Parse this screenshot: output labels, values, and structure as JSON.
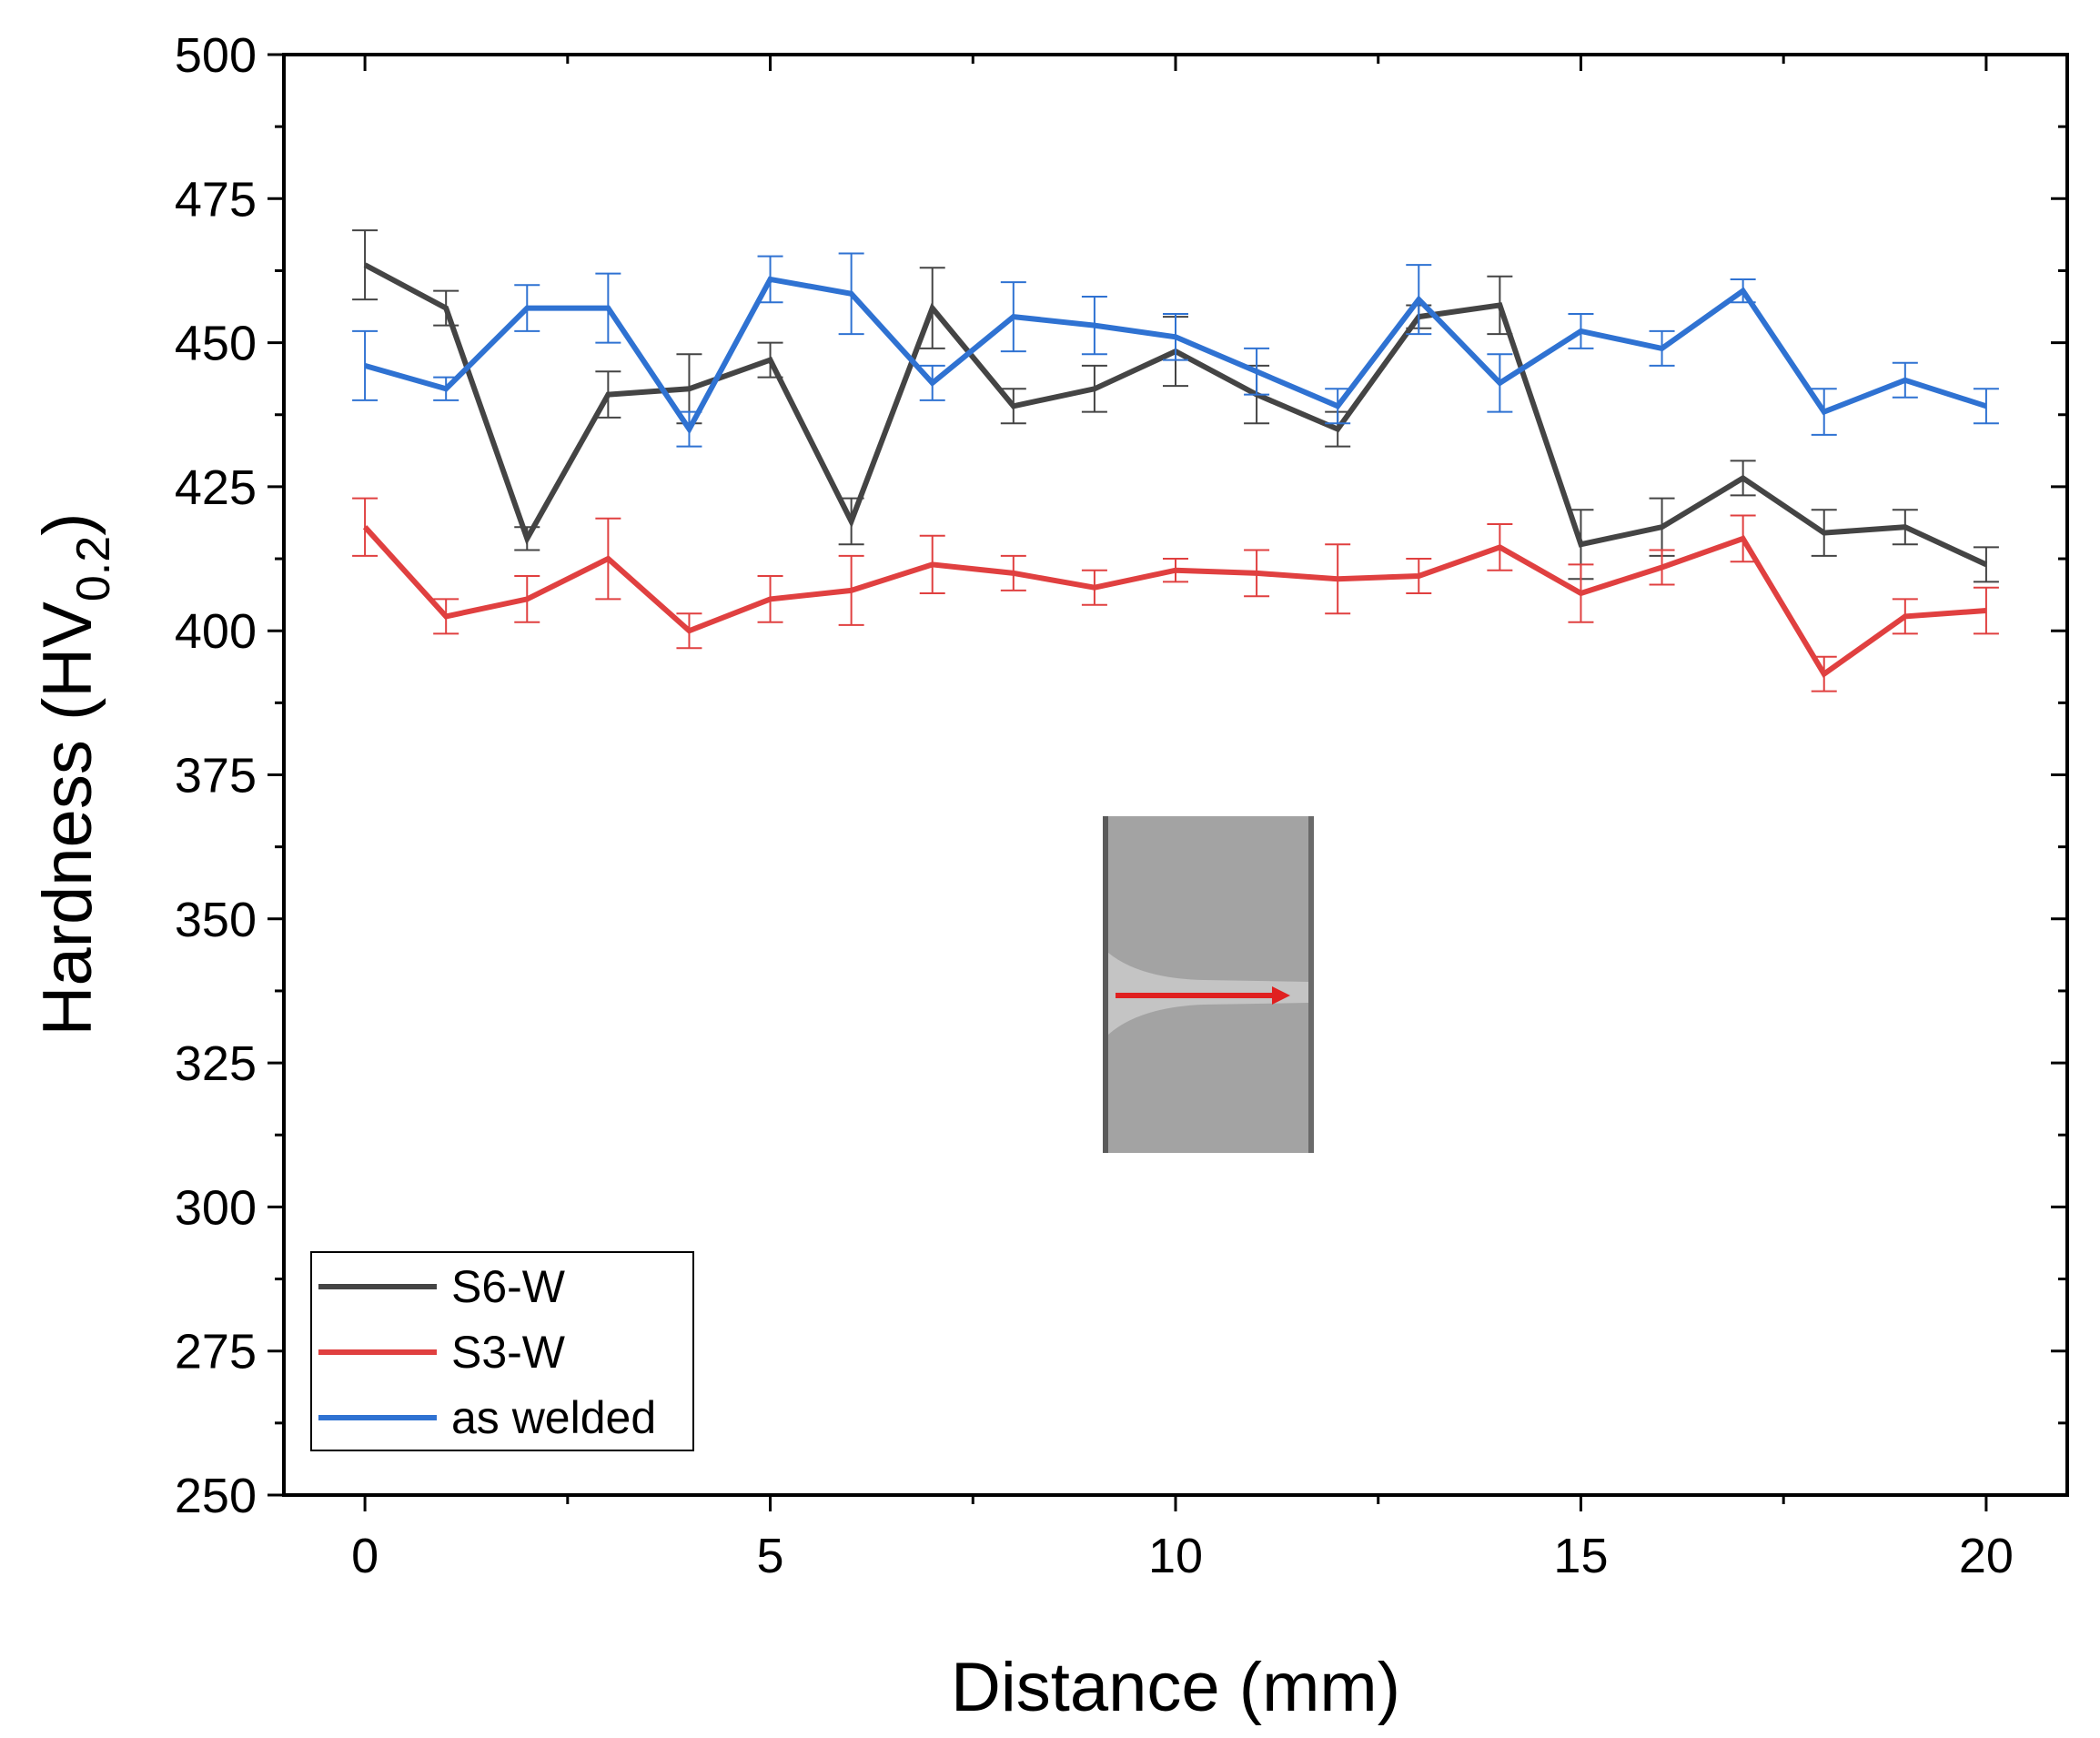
{
  "chart_data": {
    "type": "line",
    "title": "",
    "xlabel": "Distance (mm)",
    "ylabel": {
      "main": "Hardness (HV",
      "subscript": "0.2",
      "close": ")"
    },
    "xlim": [
      -1,
      21
    ],
    "ylim": [
      250,
      500
    ],
    "xticks": [
      0,
      5,
      10,
      15,
      20
    ],
    "xtick_labels": [
      "0",
      "5",
      "10",
      "15",
      "20"
    ],
    "yticks": [
      250,
      275,
      300,
      325,
      350,
      375,
      400,
      425,
      450,
      475,
      500
    ],
    "ytick_labels": [
      "250",
      "275",
      "300",
      "325",
      "350",
      "375",
      "400",
      "425",
      "450",
      "475",
      "500"
    ],
    "x": [
      0,
      1,
      2,
      3,
      4,
      5,
      6,
      7,
      8,
      9,
      10,
      11,
      12,
      13,
      14,
      15,
      16,
      17,
      18,
      19,
      20
    ],
    "series": [
      {
        "name": "S6-W",
        "color": "#444444",
        "values": [
          463.5,
          456,
          416,
          441,
          442,
          447,
          419,
          456,
          439,
          442,
          448.5,
          441,
          435,
          454.5,
          456.5,
          415,
          418,
          426.5,
          417,
          418,
          411.5
        ],
        "errors": [
          6,
          3,
          2,
          4,
          6,
          3,
          4,
          7,
          3,
          4,
          6,
          5,
          3,
          2,
          5,
          6,
          5,
          3,
          4,
          3,
          3
        ]
      },
      {
        "name": "S3-W",
        "color": "#e04040",
        "values": [
          418,
          402.5,
          405.5,
          412.5,
          400,
          405.5,
          407,
          411.5,
          410,
          407.5,
          410.5,
          410,
          409,
          409.5,
          414.5,
          406.5,
          411,
          416,
          392.5,
          402.5,
          403.5
        ],
        "errors": [
          5,
          3,
          4,
          7,
          3,
          4,
          6,
          5,
          3,
          3,
          2,
          4,
          6,
          3,
          4,
          5,
          3,
          4,
          3,
          3,
          4
        ]
      },
      {
        "name": "as welded",
        "color": "#2f72d2",
        "values": [
          446,
          442,
          456,
          456,
          435,
          461,
          458.5,
          443,
          454.5,
          453,
          451,
          445,
          439,
          457.5,
          443,
          452,
          449,
          459,
          438,
          443.5,
          439
        ],
        "errors": [
          6,
          2,
          4,
          6,
          3,
          4,
          7,
          3,
          6,
          5,
          4,
          4,
          3,
          6,
          5,
          3,
          3,
          2,
          4,
          3,
          3
        ]
      }
    ],
    "legend": {
      "placement": "bottom-left",
      "entries": [
        "S6-W",
        "S3-W",
        "as welded"
      ]
    },
    "inset_image": {
      "description_color_background": "#a3a3a3",
      "arrow_color": "#e02020"
    }
  }
}
